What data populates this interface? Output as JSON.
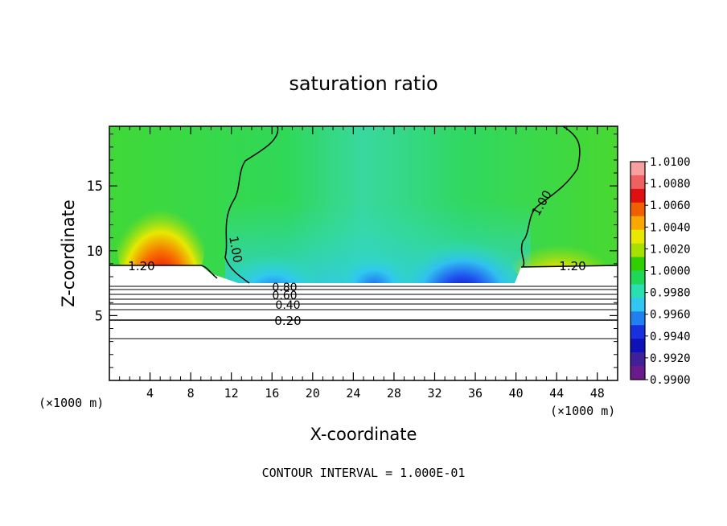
{
  "chart_data": {
    "type": "heatmap",
    "title": "saturation ratio",
    "xlabel": "X-coordinate",
    "ylabel": "Z-coordinate",
    "x_unit_label": "(×1000 m)",
    "xlim": [
      0,
      50
    ],
    "ylim": [
      0,
      19.6
    ],
    "x_ticks": [
      4,
      8,
      12,
      16,
      20,
      24,
      28,
      32,
      36,
      40,
      44,
      48
    ],
    "y_ticks": [
      5,
      10,
      15
    ],
    "colorbar": {
      "levels": [
        "1.0100",
        "1.0080",
        "1.0060",
        "1.0040",
        "1.0020",
        "1.0000",
        "0.9980",
        "0.9960",
        "0.9940",
        "0.9920",
        "0.9900"
      ],
      "colors": [
        "#f8a0a0",
        "#f06060",
        "#e01010",
        "#f06000",
        "#f8a800",
        "#e8e800",
        "#a8e000",
        "#30d000",
        "#20d858",
        "#28e0b0",
        "#30c8f0",
        "#2080f0",
        "#1830e0",
        "#1010b8",
        "#402098",
        "#6a1a8a"
      ]
    },
    "contour_labels": [
      "1.20",
      "1.20",
      "1.00",
      "1.00",
      "0.80",
      "0.60",
      "0.40",
      "0.20"
    ],
    "footer": "CONTOUR INTERVAL = 1.000E-01"
  }
}
